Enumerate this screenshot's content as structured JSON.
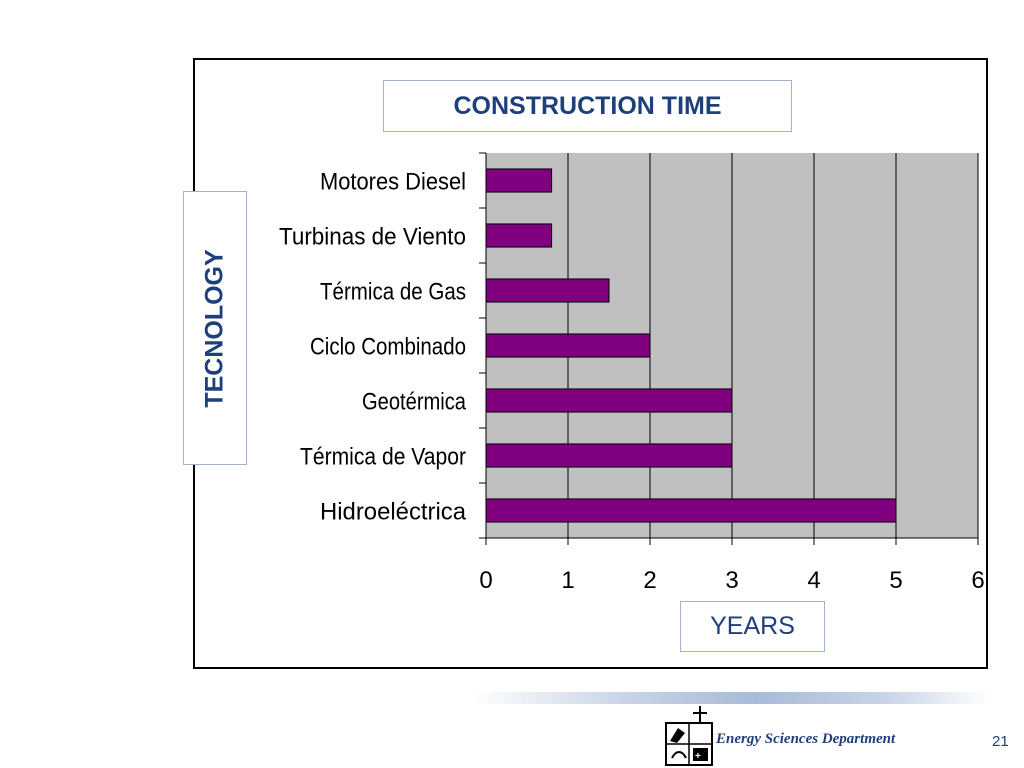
{
  "colors": {
    "bar_fill": "#800080",
    "plot_background": "#c0c0c0",
    "label_text": "#1f3f7a"
  },
  "chart_data": {
    "type": "bar",
    "orientation": "horizontal",
    "title": "CONSTRUCTION TIME",
    "xlabel": "YEARS",
    "ylabel": "TECNOLOGY",
    "categories": [
      "Motores Diesel",
      "Turbinas de Viento",
      "Térmica de Gas",
      "Ciclo Combinado",
      "Geotérmica",
      "Térmica de Vapor",
      "Hidroeléctrica"
    ],
    "values": [
      0.8,
      0.8,
      1.5,
      2,
      3,
      3,
      5
    ],
    "xlim": [
      0,
      6
    ],
    "x_ticks": [
      "0",
      "1",
      "2",
      "3",
      "4",
      "5",
      "6"
    ],
    "grid": "vertical",
    "legend": "none"
  },
  "footer": {
    "department": "Energy Sciences Department",
    "page_number": "21",
    "logo_icon": "university-crest-icon"
  }
}
